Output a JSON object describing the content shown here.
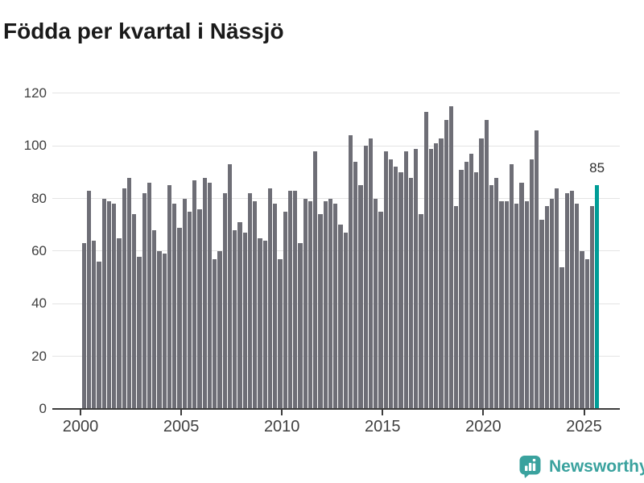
{
  "title": "Födda per kvartal i Nässjö",
  "annotation": {
    "value_label": "85"
  },
  "branding": {
    "name": "Newsworthy",
    "icon": "bar-chart-pin-icon"
  },
  "colors": {
    "bar": "#6e6e76",
    "highlight": "#009d97",
    "grid": "#e4e4e4",
    "axis_line": "#3c3c3c",
    "axis_text": "#404040",
    "title_text": "#1a1a1a",
    "brand": "#3aa29e",
    "annotation_text": "#2e2e2e"
  },
  "chart_data": {
    "type": "bar",
    "title": "Födda per kvartal i Nässjö",
    "xlabel": "",
    "ylabel": "",
    "ylim": [
      0,
      120
    ],
    "yticks": [
      0,
      20,
      40,
      60,
      80,
      100,
      120
    ],
    "xticks": [
      "2000",
      "2005",
      "2010",
      "2015",
      "2020",
      "2025"
    ],
    "grid": true,
    "legend": false,
    "highlight_index": 102,
    "highlight_label": "85",
    "x": [
      "2000-Q1",
      "2000-Q2",
      "2000-Q3",
      "2000-Q4",
      "2001-Q1",
      "2001-Q2",
      "2001-Q3",
      "2001-Q4",
      "2002-Q1",
      "2002-Q2",
      "2002-Q3",
      "2002-Q4",
      "2003-Q1",
      "2003-Q2",
      "2003-Q3",
      "2003-Q4",
      "2004-Q1",
      "2004-Q2",
      "2004-Q3",
      "2004-Q4",
      "2005-Q1",
      "2005-Q2",
      "2005-Q3",
      "2005-Q4",
      "2006-Q1",
      "2006-Q2",
      "2006-Q3",
      "2006-Q4",
      "2007-Q1",
      "2007-Q2",
      "2007-Q3",
      "2007-Q4",
      "2008-Q1",
      "2008-Q2",
      "2008-Q3",
      "2008-Q4",
      "2009-Q1",
      "2009-Q2",
      "2009-Q3",
      "2009-Q4",
      "2010-Q1",
      "2010-Q2",
      "2010-Q3",
      "2010-Q4",
      "2011-Q1",
      "2011-Q2",
      "2011-Q3",
      "2011-Q4",
      "2012-Q1",
      "2012-Q2",
      "2012-Q3",
      "2012-Q4",
      "2013-Q1",
      "2013-Q2",
      "2013-Q3",
      "2013-Q4",
      "2014-Q1",
      "2014-Q2",
      "2014-Q3",
      "2014-Q4",
      "2015-Q1",
      "2015-Q2",
      "2015-Q3",
      "2015-Q4",
      "2016-Q1",
      "2016-Q2",
      "2016-Q3",
      "2016-Q4",
      "2017-Q1",
      "2017-Q2",
      "2017-Q3",
      "2017-Q4",
      "2018-Q1",
      "2018-Q2",
      "2018-Q3",
      "2018-Q4",
      "2019-Q1",
      "2019-Q2",
      "2019-Q3",
      "2019-Q4",
      "2020-Q1",
      "2020-Q2",
      "2020-Q3",
      "2020-Q4",
      "2021-Q1",
      "2021-Q2",
      "2021-Q3",
      "2021-Q4",
      "2022-Q1",
      "2022-Q2",
      "2022-Q3",
      "2022-Q4",
      "2023-Q1",
      "2023-Q2",
      "2023-Q3",
      "2023-Q4",
      "2024-Q1",
      "2024-Q2",
      "2024-Q3",
      "2024-Q4",
      "2025-Q1",
      "2025-Q2",
      "2025-Q3"
    ],
    "values": [
      63,
      83,
      64,
      56,
      80,
      79,
      78,
      65,
      84,
      88,
      74,
      58,
      82,
      86,
      68,
      60,
      59,
      85,
      78,
      69,
      80,
      75,
      87,
      76,
      88,
      86,
      57,
      60,
      82,
      93,
      68,
      71,
      67,
      82,
      79,
      65,
      64,
      84,
      78,
      57,
      75,
      83,
      83,
      63,
      80,
      79,
      98,
      74,
      79,
      80,
      78,
      70,
      67,
      104,
      94,
      85,
      100,
      103,
      80,
      75,
      98,
      95,
      92,
      90,
      98,
      88,
      99,
      74,
      113,
      99,
      101,
      103,
      110,
      115,
      77,
      91,
      94,
      97,
      90,
      103,
      110,
      85,
      88,
      79,
      79,
      93,
      78,
      86,
      79,
      95,
      106,
      72,
      77,
      80,
      84,
      54,
      82,
      83,
      78,
      60,
      57,
      77,
      85
    ]
  }
}
